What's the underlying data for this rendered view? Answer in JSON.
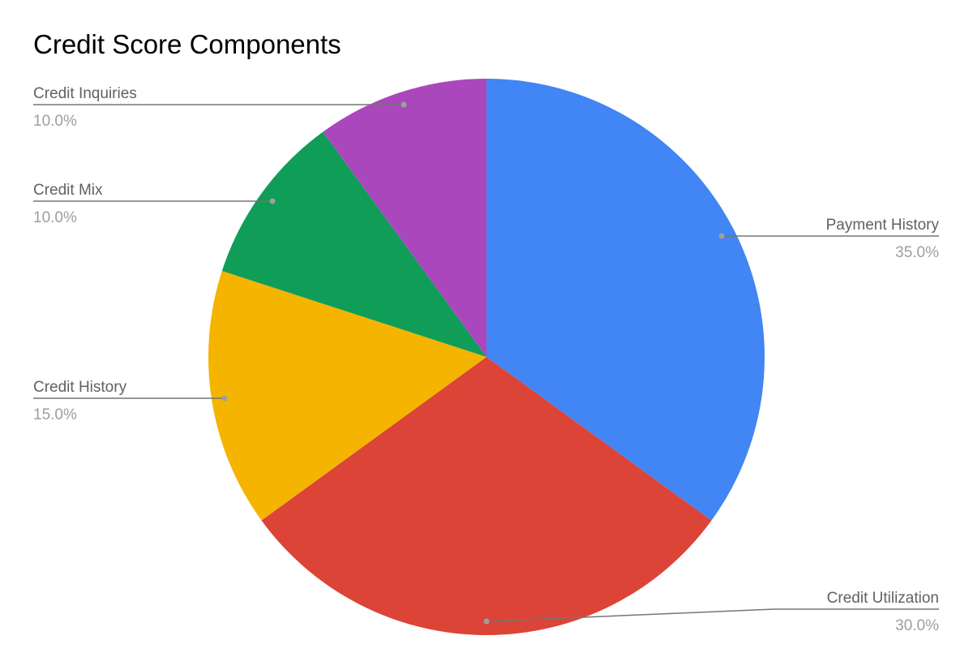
{
  "chart_data": {
    "type": "pie",
    "title": "Credit Score Components",
    "start_angle": "top, clockwise",
    "slices": [
      {
        "label": "Payment History",
        "value": 35.0,
        "display": "35.0%",
        "color": "#4285F4"
      },
      {
        "label": "Credit Utilization",
        "value": 30.0,
        "display": "30.0%",
        "color": "#DB4437"
      },
      {
        "label": "Credit History",
        "value": 15.0,
        "display": "15.0%",
        "color": "#F4B400"
      },
      {
        "label": "Credit Mix",
        "value": 10.0,
        "display": "10.0%",
        "color": "#0F9D58"
      },
      {
        "label": "Credit Inquiries",
        "value": 10.0,
        "display": "10.0%",
        "color": "#AB47BC"
      }
    ],
    "legend": "none (leader-line labels)"
  }
}
